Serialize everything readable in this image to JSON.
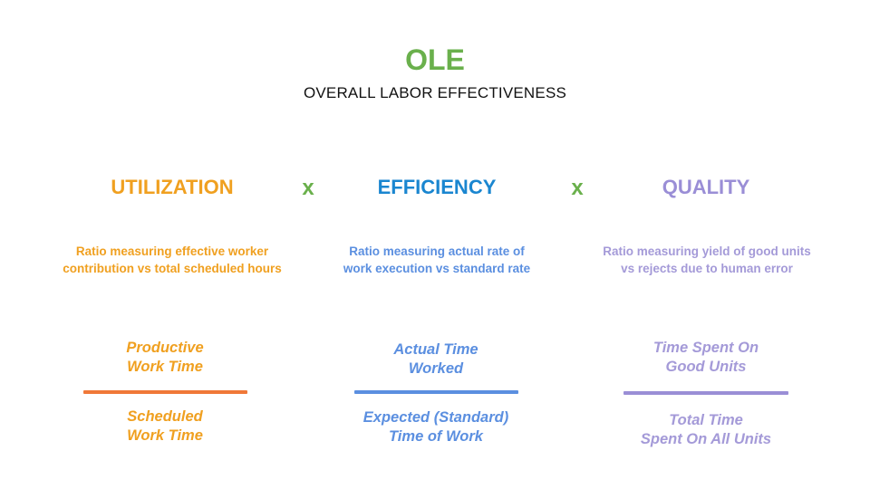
{
  "title": "OLE",
  "subtitle": "OVERALL LABOR EFFECTIVENESS",
  "operator": "x",
  "columns": [
    {
      "heading": "UTILIZATION",
      "description_lines": [
        "Ratio measuring effective worker",
        "contribution vs total scheduled hours"
      ],
      "numerator_lines": [
        "Productive",
        "Work Time"
      ],
      "denominator_lines": [
        "Scheduled",
        "Work Time"
      ],
      "color": "#f0a020",
      "bar_color": "#f07838"
    },
    {
      "heading": "EFFICIENCY",
      "description_lines": [
        "Ratio measuring actual rate of",
        "work execution vs standard rate"
      ],
      "numerator_lines": [
        "Actual Time",
        "Worked"
      ],
      "denominator_lines": [
        "Expected (Standard)",
        "Time of Work"
      ],
      "color": "#1a86d0",
      "bar_color": "#5b8fe0"
    },
    {
      "heading": "QUALITY",
      "description_lines": [
        "Ratio measuring yield of good units",
        "vs rejects due to human error"
      ],
      "numerator_lines": [
        "Time Spent On",
        "Good Units"
      ],
      "denominator_lines": [
        "Total Time",
        "Spent On All Units"
      ],
      "color": "#9a8ed6",
      "bar_color": "#9a8ed6"
    }
  ]
}
